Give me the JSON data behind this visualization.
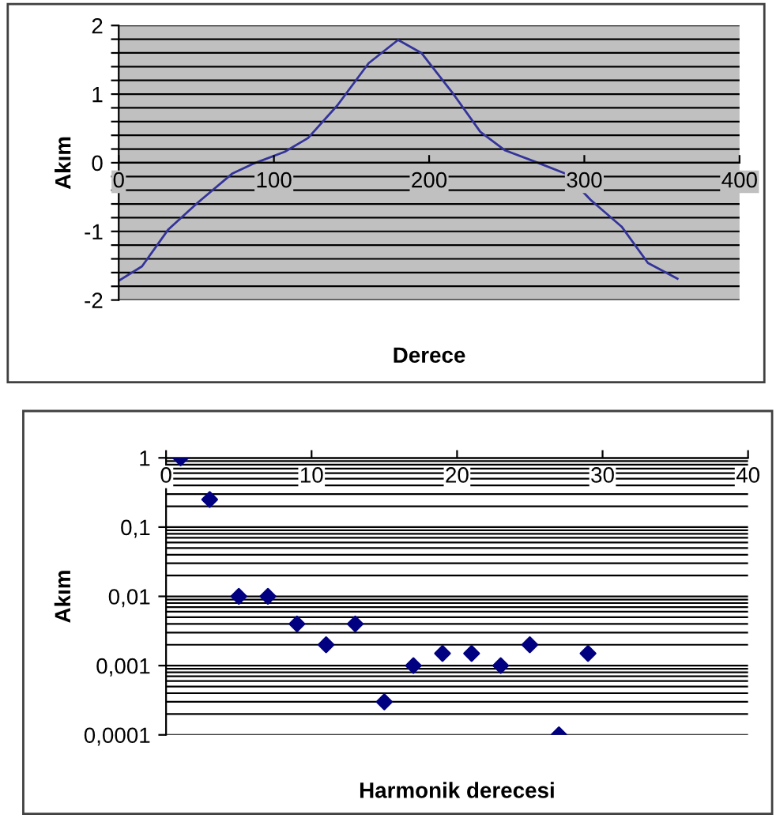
{
  "chart_data": [
    {
      "type": "line",
      "xlabel": "Derece",
      "ylabel": "Akım",
      "color": "#33339a",
      "x": [
        0,
        15,
        32,
        51,
        73,
        86,
        107,
        122,
        141,
        161,
        180,
        195,
        216,
        233,
        249,
        270,
        288,
        304,
        324,
        341,
        360
      ],
      "values": [
        -1.72,
        -1.51,
        -0.97,
        -0.58,
        -0.16,
        -0.02,
        0.16,
        0.36,
        0.84,
        1.45,
        1.79,
        1.6,
        0.99,
        0.45,
        0.18,
        0,
        -0.16,
        -0.54,
        -0.93,
        -1.46,
        -1.69
      ],
      "xlim": [
        0,
        400
      ],
      "xticks": [
        0,
        100,
        200,
        300,
        400
      ],
      "ylim": [
        -2,
        2
      ],
      "yticks": [
        -2,
        {
          "value": -1.8,
          "label": null
        },
        {
          "value": -1.6,
          "label": null
        },
        {
          "value": -1.4,
          "label": null
        },
        {
          "value": -1.2,
          "label": null
        },
        -1,
        {
          "value": -0.8,
          "label": null
        },
        {
          "value": -0.6,
          "label": null
        },
        {
          "value": -0.4,
          "label": null
        },
        {
          "value": -0.2,
          "label": null
        },
        0,
        {
          "value": 0.2,
          "label": null
        },
        {
          "value": 0.4,
          "label": null
        },
        {
          "value": 0.6,
          "label": null
        },
        {
          "value": 0.8,
          "label": null
        },
        1,
        {
          "value": 1.2,
          "label": null
        },
        {
          "value": 1.4,
          "label": null
        },
        {
          "value": 1.6,
          "label": null
        },
        {
          "value": 1.8,
          "label": null
        },
        2
      ],
      "grid": "y",
      "marker": "none",
      "line_style": "solid"
    },
    {
      "type": "scatter",
      "xlabel": "Harmonik derecesi",
      "ylabel": "Akım",
      "color": "#000080",
      "x": [
        1,
        3,
        5,
        7,
        9,
        11,
        13,
        15,
        17,
        19,
        21,
        23,
        25,
        27,
        29
      ],
      "values": [
        1,
        0.25,
        0.01,
        0.01,
        0.004,
        0.002,
        0.004,
        0.0003,
        0.001,
        0.0015,
        0.0015,
        0.001,
        0.002,
        0.0001,
        0.0015
      ],
      "log": "y",
      "xlim": [
        0,
        40
      ],
      "xticks": [
        0,
        10,
        20,
        30,
        40
      ],
      "ylim": [
        0.0001,
        1
      ],
      "yticks": [
        {
          "value": 0.0001,
          "label": "0,0001"
        },
        {
          "value": 0.001,
          "label": "0,001"
        },
        {
          "value": 0.01,
          "label": "0,01"
        },
        {
          "value": 0.1,
          "label": "0,1"
        },
        1
      ],
      "grid": "y",
      "marker": "diamond"
    }
  ]
}
